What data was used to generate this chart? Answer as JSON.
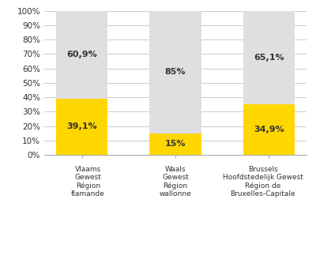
{
  "categories": [
    "Vlaams\nGewest\nRégion\nflamande",
    "Waals\nGewest\nRégion\nwallonne",
    "Brussels\nHoofdstedelijk Gewest\nRégion de\nBruxelles-Capitale"
  ],
  "isolated_values": [
    39.1,
    15.0,
    34.9
  ],
  "not_isolated_values": [
    60.9,
    85.0,
    65.1
  ],
  "isolated_labels": [
    "39,1%",
    "15%",
    "34,9%"
  ],
  "not_isolated_labels": [
    "60,9%",
    "85%",
    "65,1%"
  ],
  "color_isolated": "#FFD700",
  "color_not_isolated": "#E0DFDF",
  "bar_width": 0.55,
  "ylim": [
    0,
    100
  ],
  "yticks": [
    0,
    10,
    20,
    30,
    40,
    50,
    60,
    70,
    80,
    90,
    100
  ],
  "ytick_labels": [
    "0%",
    "10%",
    "20%",
    "30%",
    "40%",
    "50%",
    "60%",
    "70%",
    "80%",
    "90%",
    "100%"
  ],
  "grid_color": "#cccccc",
  "text_color": "#333333",
  "label_fontsize": 8,
  "tick_fontsize": 7.5,
  "xtick_fontsize": 6.5,
  "legend_fontsize": 7,
  "background_color": "#ffffff"
}
